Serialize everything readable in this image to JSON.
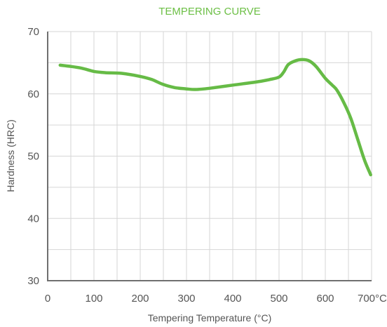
{
  "chart_data": {
    "type": "line",
    "title": "TEMPERING CURVE",
    "xlabel": "Tempering Temperature (°C)",
    "ylabel": "Hardness (HRC)",
    "xlim": [
      0,
      700
    ],
    "ylim": [
      30,
      70
    ],
    "x_ticks": [
      {
        "value": 0,
        "label": "0"
      },
      {
        "value": 100,
        "label": "100"
      },
      {
        "value": 200,
        "label": "200"
      },
      {
        "value": 300,
        "label": "300"
      },
      {
        "value": 400,
        "label": "400"
      },
      {
        "value": 500,
        "label": "500"
      },
      {
        "value": 600,
        "label": "600"
      },
      {
        "value": 700,
        "label": "700°C"
      }
    ],
    "y_ticks": [
      {
        "value": 30,
        "label": "30"
      },
      {
        "value": 40,
        "label": "40"
      },
      {
        "value": 50,
        "label": "50"
      },
      {
        "value": 60,
        "label": "60"
      },
      {
        "value": 70,
        "label": "70"
      }
    ],
    "x_grid_step": 50,
    "y_grid_step": 5,
    "grid": true,
    "line_color": "#66bb46",
    "series": [
      {
        "points": [
          [
            27,
            64.6
          ],
          [
            50,
            64.4
          ],
          [
            75,
            64.1
          ],
          [
            100,
            63.6
          ],
          [
            125,
            63.4
          ],
          [
            160,
            63.3
          ],
          [
            200,
            62.8
          ],
          [
            225,
            62.3
          ],
          [
            250,
            61.5
          ],
          [
            275,
            61.0
          ],
          [
            300,
            60.8
          ],
          [
            320,
            60.7
          ],
          [
            350,
            60.9
          ],
          [
            400,
            61.4
          ],
          [
            450,
            61.9
          ],
          [
            480,
            62.3
          ],
          [
            500,
            62.7
          ],
          [
            510,
            63.5
          ],
          [
            520,
            64.7
          ],
          [
            535,
            65.3
          ],
          [
            550,
            65.5
          ],
          [
            565,
            65.3
          ],
          [
            580,
            64.4
          ],
          [
            600,
            62.5
          ],
          [
            615,
            61.4
          ],
          [
            625,
            60.6
          ],
          [
            640,
            58.6
          ],
          [
            655,
            56.1
          ],
          [
            670,
            52.7
          ],
          [
            685,
            49.3
          ],
          [
            698,
            47.0
          ]
        ]
      }
    ]
  }
}
